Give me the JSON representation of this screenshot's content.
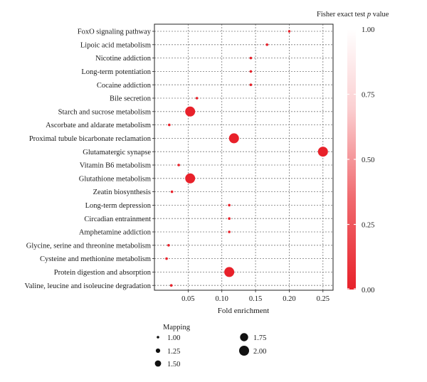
{
  "chart_data": {
    "type": "scatter",
    "xlabel": "Fold enrichment",
    "xlim": [
      0.0,
      0.265
    ],
    "x_ticks": [
      {
        "value": 0.05,
        "label": "0.05"
      },
      {
        "value": 0.1,
        "label": "0.10"
      },
      {
        "value": 0.15,
        "label": "0.15"
      },
      {
        "value": 0.2,
        "label": "0.20"
      },
      {
        "value": 0.25,
        "label": "0.25"
      }
    ],
    "grid": true,
    "categories": [
      "FoxO signaling pathway",
      "Lipoic acid metabolism",
      "Nicotine addiction",
      "Long-term potentiation",
      "Cocaine addiction",
      "Bile secretion",
      "Starch and sucrose metabolism",
      "Ascorbate and aldarate metabolism",
      "Proximal tubule bicarbonate reclamation",
      "Glutamatergic synapse",
      "Vitamin B6 metabolism",
      "Glutathione metabolism",
      "Zeatin biosynthesis",
      "Long-term depression",
      "Circadian entrainment",
      "Amphetamine addiction",
      "Glycine, serine and threonine metabolism",
      "Cysteine and methionine metabolism",
      "Protein digestion and absorption",
      "Valine, leucine and isoleucine degradation"
    ],
    "points": [
      {
        "term": "FoxO signaling pathway",
        "fold_enrichment": 0.2,
        "mapping": 1.0,
        "p_value": 0.02
      },
      {
        "term": "Lipoic acid metabolism",
        "fold_enrichment": 0.167,
        "mapping": 1.0,
        "p_value": 0.02
      },
      {
        "term": "Nicotine addiction",
        "fold_enrichment": 0.143,
        "mapping": 1.0,
        "p_value": 0.02
      },
      {
        "term": "Long-term potentiation",
        "fold_enrichment": 0.143,
        "mapping": 1.0,
        "p_value": 0.02
      },
      {
        "term": "Cocaine addiction",
        "fold_enrichment": 0.143,
        "mapping": 1.0,
        "p_value": 0.02
      },
      {
        "term": "Bile secretion",
        "fold_enrichment": 0.063,
        "mapping": 1.0,
        "p_value": 0.02
      },
      {
        "term": "Starch and sucrose metabolism",
        "fold_enrichment": 0.053,
        "mapping": 2.0,
        "p_value": 0.0
      },
      {
        "term": "Ascorbate and aldarate metabolism",
        "fold_enrichment": 0.022,
        "mapping": 1.0,
        "p_value": 0.02
      },
      {
        "term": "Proximal tubule bicarbonate reclamation",
        "fold_enrichment": 0.118,
        "mapping": 2.0,
        "p_value": 0.0
      },
      {
        "term": "Glutamatergic synapse",
        "fold_enrichment": 0.25,
        "mapping": 2.0,
        "p_value": 0.0
      },
      {
        "term": "Vitamin B6 metabolism",
        "fold_enrichment": 0.036,
        "mapping": 1.0,
        "p_value": 0.02
      },
      {
        "term": "Glutathione metabolism",
        "fold_enrichment": 0.053,
        "mapping": 2.0,
        "p_value": 0.0
      },
      {
        "term": "Zeatin biosynthesis",
        "fold_enrichment": 0.026,
        "mapping": 1.0,
        "p_value": 0.02
      },
      {
        "term": "Long-term depression",
        "fold_enrichment": 0.111,
        "mapping": 1.0,
        "p_value": 0.02
      },
      {
        "term": "Circadian entrainment",
        "fold_enrichment": 0.111,
        "mapping": 1.0,
        "p_value": 0.02
      },
      {
        "term": "Amphetamine addiction",
        "fold_enrichment": 0.111,
        "mapping": 1.0,
        "p_value": 0.02
      },
      {
        "term": "Glycine, serine and threonine metabolism",
        "fold_enrichment": 0.021,
        "mapping": 1.0,
        "p_value": 0.02
      },
      {
        "term": "Cysteine and methionine metabolism",
        "fold_enrichment": 0.018,
        "mapping": 1.0,
        "p_value": 0.02
      },
      {
        "term": "Protein digestion and absorption",
        "fold_enrichment": 0.111,
        "mapping": 2.0,
        "p_value": 0.0
      },
      {
        "term": "Valine, leucine and isoleucine degradation",
        "fold_enrichment": 0.025,
        "mapping": 1.0,
        "p_value": 0.02
      }
    ],
    "size_legend": {
      "title": "Mapping",
      "entries": [
        {
          "value": 1.0,
          "label": "1.00"
        },
        {
          "value": 1.25,
          "label": "1.25"
        },
        {
          "value": 1.5,
          "label": "1.50"
        },
        {
          "value": 1.75,
          "label": "1.75"
        },
        {
          "value": 2.0,
          "label": "2.00"
        }
      ]
    },
    "colorbar": {
      "title_parts": [
        "Fisher exact test ",
        "p",
        " value"
      ],
      "range": [
        0.0,
        1.0
      ],
      "ticks": [
        {
          "value": 1.0,
          "label": "1.00"
        },
        {
          "value": 0.75,
          "label": "0.75"
        },
        {
          "value": 0.5,
          "label": "0.50"
        },
        {
          "value": 0.25,
          "label": "0.25"
        },
        {
          "value": 0.0,
          "label": "0.00"
        }
      ],
      "color_low": "#e8212a",
      "color_high": "#ffffff"
    },
    "point_color": "#e8212a"
  }
}
